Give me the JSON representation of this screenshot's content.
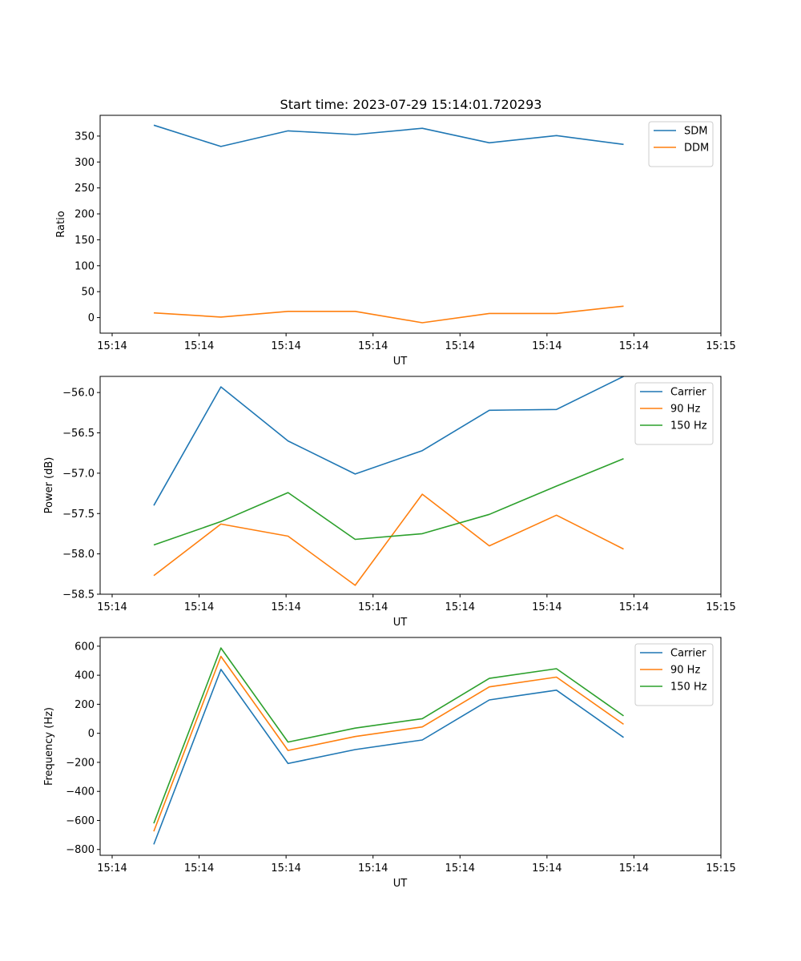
{
  "figure_title": "Start time: 2023-07-29 15:14:01.720293",
  "colors": {
    "blue": "#1f77b4",
    "orange": "#ff7f0e",
    "green": "#2ca02c",
    "axis": "#000000",
    "legend_border": "#cccccc"
  },
  "chart_data": [
    {
      "type": "line",
      "title": "Start time: 2023-07-29 15:14:01.720293",
      "xlabel": "UT",
      "ylabel": "Ratio",
      "x_ticks": [
        "15:14",
        "15:14",
        "15:14",
        "15:14",
        "15:14",
        "15:14",
        "15:14",
        "15:15"
      ],
      "xlim": [
        0,
        9.25
      ],
      "ylim": [
        -30,
        390
      ],
      "y_ticks": [
        0,
        50,
        100,
        150,
        200,
        250,
        300,
        350
      ],
      "y_tick_labels": [
        "0",
        "50",
        "100",
        "150",
        "200",
        "250",
        "300",
        "350"
      ],
      "legend_position": "top-right",
      "series": [
        {
          "name": "SDM",
          "color": "#1f77b4",
          "x": [
            0.8,
            1.8,
            2.8,
            3.8,
            4.8,
            5.8,
            6.8,
            7.8
          ],
          "values": [
            371,
            330,
            360,
            353,
            365,
            337,
            351,
            334
          ]
        },
        {
          "name": "DDM",
          "color": "#ff7f0e",
          "x": [
            0.8,
            1.8,
            2.8,
            3.8,
            4.8,
            5.8,
            6.8,
            7.8
          ],
          "values": [
            9,
            1,
            12,
            12,
            -10,
            8,
            8,
            22
          ]
        }
      ]
    },
    {
      "type": "line",
      "title": "",
      "xlabel": "UT",
      "ylabel": "Power (dB)",
      "x_ticks": [
        "15:14",
        "15:14",
        "15:14",
        "15:14",
        "15:14",
        "15:14",
        "15:14",
        "15:15"
      ],
      "xlim": [
        0,
        9.25
      ],
      "ylim": [
        -58.5,
        -55.8
      ],
      "y_ticks": [
        -58.5,
        -58.0,
        -57.5,
        -57.0,
        -56.5,
        -56.0
      ],
      "y_tick_labels": [
        "−58.5",
        "−58.0",
        "−57.5",
        "−57.0",
        "−56.5",
        "−56.0"
      ],
      "legend_position": "top-right",
      "series": [
        {
          "name": "Carrier",
          "color": "#1f77b4",
          "x": [
            0.8,
            1.8,
            2.8,
            3.8,
            4.8,
            5.8,
            6.8,
            7.8
          ],
          "values": [
            -57.4,
            -55.93,
            -56.6,
            -57.01,
            -56.72,
            -56.22,
            -56.21,
            -55.8
          ]
        },
        {
          "name": "90 Hz",
          "color": "#ff7f0e",
          "x": [
            0.8,
            1.8,
            2.8,
            3.8,
            4.8,
            5.8,
            6.8,
            7.8
          ],
          "values": [
            -58.27,
            -57.63,
            -57.78,
            -58.39,
            -57.26,
            -57.9,
            -57.52,
            -57.94
          ]
        },
        {
          "name": "150 Hz",
          "color": "#2ca02c",
          "x": [
            0.8,
            1.8,
            2.8,
            3.8,
            4.8,
            5.8,
            6.8,
            7.8
          ],
          "values": [
            -57.89,
            -57.6,
            -57.24,
            -57.82,
            -57.75,
            -57.51,
            -57.16,
            -56.82
          ]
        }
      ]
    },
    {
      "type": "line",
      "title": "",
      "xlabel": "UT",
      "ylabel": "Frequency (Hz)",
      "x_ticks": [
        "15:14",
        "15:14",
        "15:14",
        "15:14",
        "15:14",
        "15:14",
        "15:14",
        "15:15"
      ],
      "xlim": [
        0,
        9.25
      ],
      "ylim": [
        -840,
        660
      ],
      "y_ticks": [
        -800,
        -600,
        -400,
        -200,
        0,
        200,
        400,
        600
      ],
      "y_tick_labels": [
        "−800",
        "−600",
        "−400",
        "−200",
        "0",
        "200",
        "400",
        "600"
      ],
      "legend_position": "top-right",
      "series": [
        {
          "name": "Carrier",
          "color": "#1f77b4",
          "x": [
            0.8,
            1.8,
            2.8,
            3.8,
            4.8,
            5.8,
            6.8,
            7.8
          ],
          "values": [
            -765,
            440,
            -208,
            -112,
            -46,
            230,
            297,
            -28
          ]
        },
        {
          "name": "90 Hz",
          "color": "#ff7f0e",
          "x": [
            0.8,
            1.8,
            2.8,
            3.8,
            4.8,
            5.8,
            6.8,
            7.8
          ],
          "values": [
            -675,
            530,
            -118,
            -22,
            44,
            320,
            387,
            62
          ]
        },
        {
          "name": "150 Hz",
          "color": "#2ca02c",
          "x": [
            0.8,
            1.8,
            2.8,
            3.8,
            4.8,
            5.8,
            6.8,
            7.8
          ],
          "values": [
            -620,
            588,
            -60,
            36,
            101,
            378,
            445,
            120
          ]
        }
      ]
    }
  ]
}
